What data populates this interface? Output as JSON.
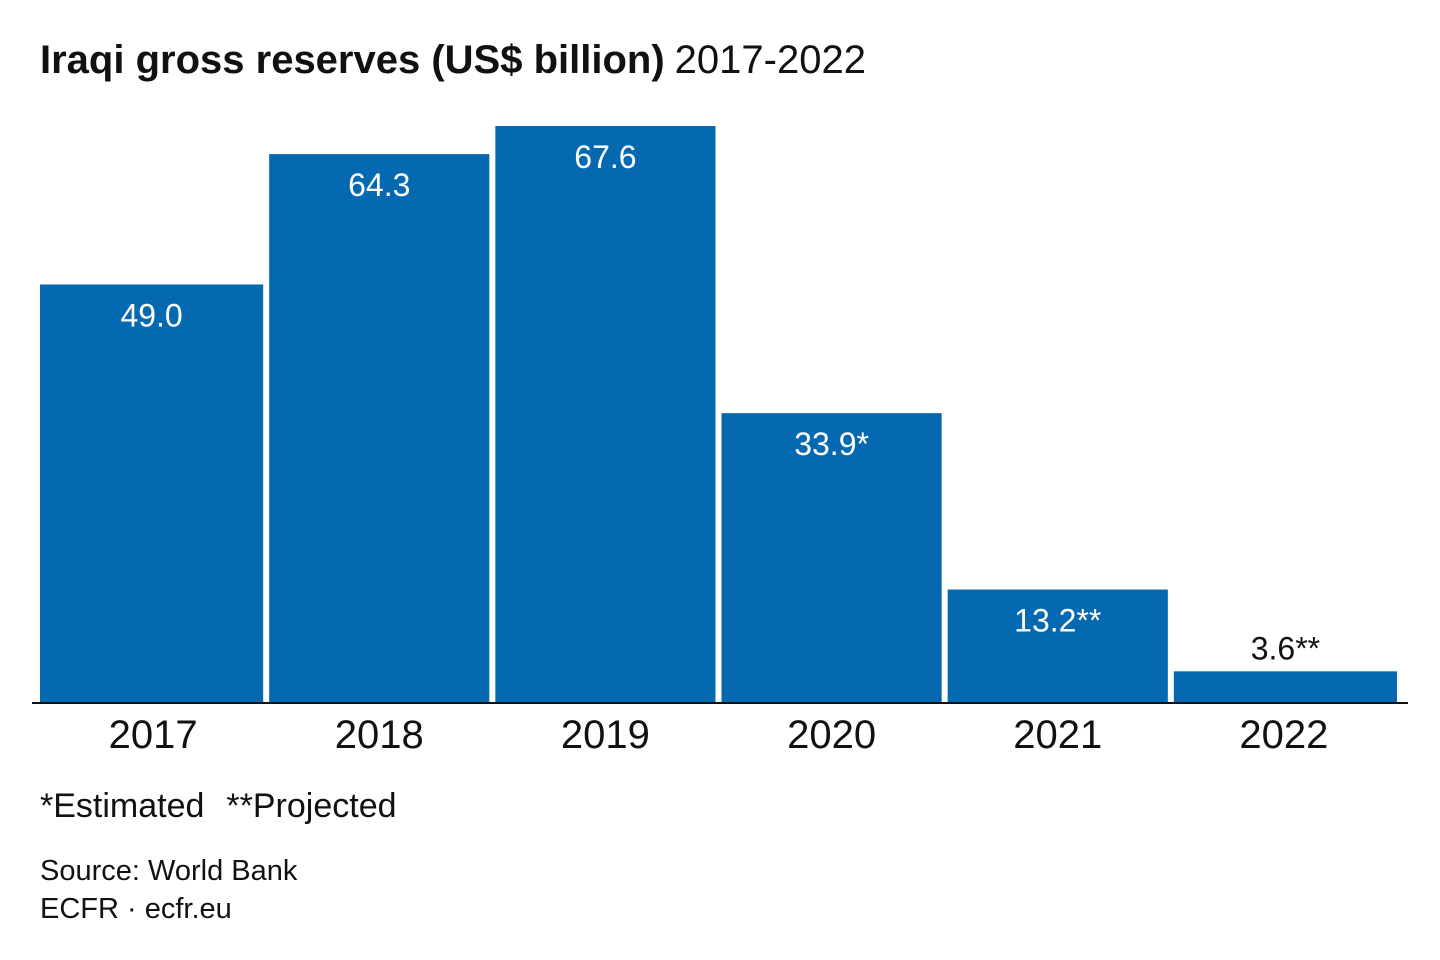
{
  "title": {
    "main": "Iraqi gross reserves (US$ billion)",
    "period": "2017-2022"
  },
  "chart_data": {
    "type": "bar",
    "categories": [
      "2017",
      "2018",
      "2019",
      "2020",
      "2021",
      "2022"
    ],
    "values": [
      49.0,
      64.3,
      67.6,
      33.9,
      13.2,
      3.6
    ],
    "data_labels": [
      "49.0",
      "64.3",
      "67.6",
      "33.9*",
      "13.2**",
      "3.6**"
    ],
    "ylim": [
      0,
      67.6
    ],
    "grid": false,
    "bar_color": "#0569b2",
    "axis_color": "#111111"
  },
  "footnotes": {
    "estimated": "*Estimated",
    "projected": "**Projected"
  },
  "source": {
    "line1": "Source: World Bank",
    "line2": "ECFR · ecfr.eu"
  }
}
